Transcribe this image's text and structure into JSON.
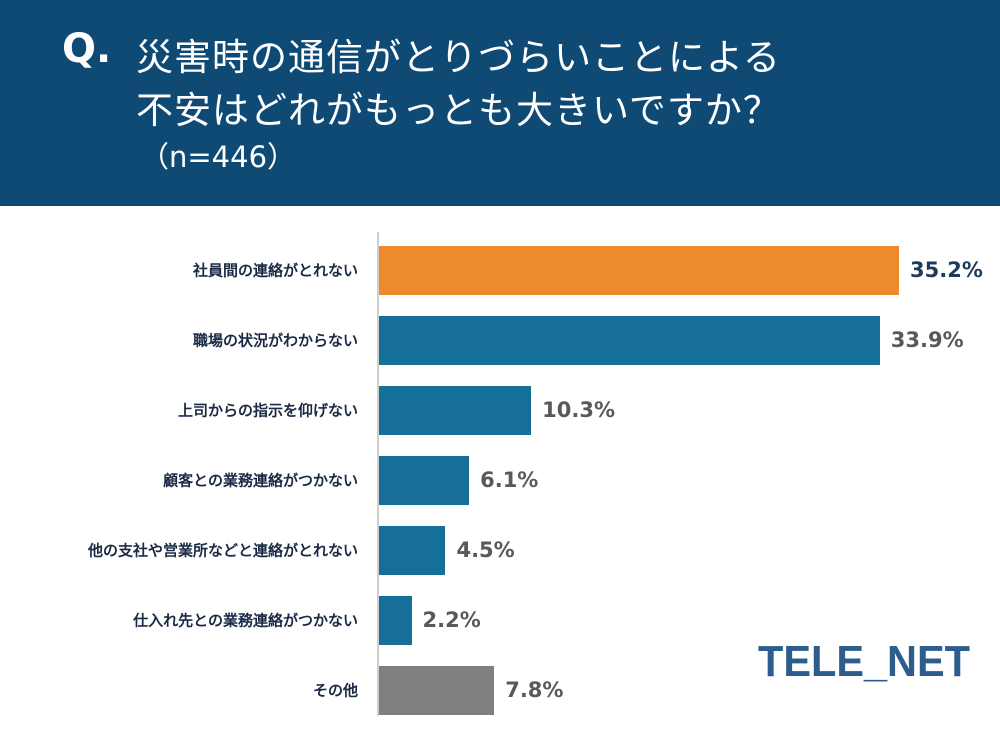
{
  "header": {
    "q_mark": "Q.",
    "question_line1": "災害時の通信がとりづらいことによる",
    "question_line2": "不安はどれがもっとも大きいですか？",
    "sample_size": "（n=446）"
  },
  "logo": {
    "text": "TELE_NET",
    "color": "#2c5d8c"
  },
  "colors": {
    "header_bg": "#0f4a75",
    "highlight": "#ec8a2d",
    "primary": "#156f97",
    "other": "#7f7f7f",
    "highlight_value": "#1f3a5a",
    "value_text": "#595959"
  },
  "chart_data": {
    "type": "bar",
    "orientation": "horizontal",
    "categories": [
      "社員間の連絡がとれない",
      "職場の状況がわからない",
      "上司からの指示を仰げない",
      "顧客との業務連絡がつかない",
      "他の支社や営業所などと連絡がとれない",
      "仕入れ先との業務連絡がつかない",
      "その他"
    ],
    "values": [
      35.2,
      33.9,
      10.3,
      6.1,
      4.5,
      2.2,
      7.8
    ],
    "value_labels": [
      "35.2%",
      "33.9%",
      "10.3%",
      "6.1%",
      "4.5%",
      "2.2%",
      "7.8%"
    ],
    "bar_colors": [
      "#ec8a2d",
      "#156f97",
      "#156f97",
      "#156f97",
      "#156f97",
      "#156f97",
      "#7f7f7f"
    ],
    "label_colors": [
      "#1f3a5a",
      "#595959",
      "#595959",
      "#595959",
      "#595959",
      "#595959",
      "#595959"
    ],
    "xlim": [
      0,
      35.2
    ],
    "grid": false,
    "legend": "none"
  }
}
